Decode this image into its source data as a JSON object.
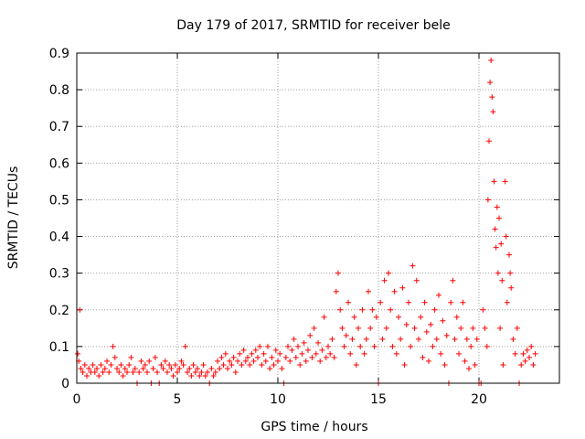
{
  "colors": {
    "series": "#ff0000",
    "grid": "#a0a0a0",
    "axis": "#000000",
    "background": "#ffffff"
  },
  "chart_data": {
    "type": "scatter",
    "title": "Day 179 of 2017, SRMTID for receiver bele",
    "xlabel": "GPS time / hours",
    "ylabel": "SRMTID / TECUs",
    "xlim": [
      0,
      24
    ],
    "ylim": [
      0,
      0.9
    ],
    "x_ticks": [
      0,
      5,
      10,
      15,
      20
    ],
    "x_tick_labels": [
      "0",
      "5",
      "10",
      "15",
      "20"
    ],
    "y_ticks": [
      0,
      0.1,
      0.2,
      0.3,
      0.4,
      0.5,
      0.6,
      0.7,
      0.8,
      0.9
    ],
    "y_tick_labels": [
      "0",
      "0.1",
      "0.2",
      "0.3",
      "0.4",
      "0.5",
      "0.6",
      "0.7",
      "0.8",
      "0.9"
    ],
    "grid": true,
    "marker": "plus",
    "series": [
      {
        "name": "SRMTID",
        "points": [
          [
            0.05,
            0.08
          ],
          [
            0.1,
            0.06
          ],
          [
            0.15,
            0.2
          ],
          [
            0.2,
            0.04
          ],
          [
            0.3,
            0.03
          ],
          [
            0.4,
            0.05
          ],
          [
            0.5,
            0.02
          ],
          [
            0.6,
            0.04
          ],
          [
            0.7,
            0.03
          ],
          [
            0.8,
            0.05
          ],
          [
            0.9,
            0.03
          ],
          [
            1.0,
            0.04
          ],
          [
            1.1,
            0.02
          ],
          [
            1.2,
            0.05
          ],
          [
            1.3,
            0.03
          ],
          [
            1.4,
            0.04
          ],
          [
            1.5,
            0.06
          ],
          [
            1.6,
            0.03
          ],
          [
            1.7,
            0.05
          ],
          [
            1.8,
            0.1
          ],
          [
            1.9,
            0.07
          ],
          [
            2.0,
            0.04
          ],
          [
            2.1,
            0.03
          ],
          [
            2.2,
            0.05
          ],
          [
            2.3,
            0.02
          ],
          [
            2.4,
            0.04
          ],
          [
            2.5,
            0.03
          ],
          [
            2.6,
            0.05
          ],
          [
            2.7,
            0.07
          ],
          [
            2.8,
            0.03
          ],
          [
            2.9,
            0.04
          ],
          [
            3.0,
            0.0
          ],
          [
            3.1,
            0.03
          ],
          [
            3.2,
            0.06
          ],
          [
            3.3,
            0.04
          ],
          [
            3.4,
            0.05
          ],
          [
            3.5,
            0.03
          ],
          [
            3.6,
            0.06
          ],
          [
            3.7,
            0.0
          ],
          [
            3.8,
            0.04
          ],
          [
            3.9,
            0.07
          ],
          [
            4.0,
            0.03
          ],
          [
            4.1,
            0.0
          ],
          [
            4.2,
            0.05
          ],
          [
            4.3,
            0.04
          ],
          [
            4.4,
            0.06
          ],
          [
            4.5,
            0.03
          ],
          [
            4.6,
            0.05
          ],
          [
            4.7,
            0.04
          ],
          [
            4.8,
            0.02
          ],
          [
            4.9,
            0.05
          ],
          [
            5.0,
            0.03
          ],
          [
            5.1,
            0.04
          ],
          [
            5.2,
            0.06
          ],
          [
            5.3,
            0.05
          ],
          [
            5.4,
            0.1
          ],
          [
            5.5,
            0.03
          ],
          [
            5.6,
            0.04
          ],
          [
            5.7,
            0.02
          ],
          [
            5.8,
            0.05
          ],
          [
            5.9,
            0.03
          ],
          [
            6.0,
            0.04
          ],
          [
            6.1,
            0.02
          ],
          [
            6.2,
            0.03
          ],
          [
            6.3,
            0.05
          ],
          [
            6.4,
            0.02
          ],
          [
            6.5,
            0.03
          ],
          [
            6.6,
            0.0
          ],
          [
            6.7,
            0.04
          ],
          [
            6.8,
            0.02
          ],
          [
            6.9,
            0.03
          ],
          [
            7.0,
            0.06
          ],
          [
            7.1,
            0.04
          ],
          [
            7.2,
            0.07
          ],
          [
            7.3,
            0.05
          ],
          [
            7.4,
            0.08
          ],
          [
            7.5,
            0.04
          ],
          [
            7.6,
            0.06
          ],
          [
            7.7,
            0.05
          ],
          [
            7.8,
            0.07
          ],
          [
            7.9,
            0.03
          ],
          [
            8.0,
            0.06
          ],
          [
            8.1,
            0.08
          ],
          [
            8.2,
            0.05
          ],
          [
            8.3,
            0.09
          ],
          [
            8.4,
            0.06
          ],
          [
            8.5,
            0.07
          ],
          [
            8.6,
            0.05
          ],
          [
            8.7,
            0.08
          ],
          [
            8.8,
            0.06
          ],
          [
            8.9,
            0.09
          ],
          [
            9.0,
            0.07
          ],
          [
            9.1,
            0.1
          ],
          [
            9.2,
            0.05
          ],
          [
            9.3,
            0.08
          ],
          [
            9.4,
            0.06
          ],
          [
            9.5,
            0.1
          ],
          [
            9.6,
            0.04
          ],
          [
            9.7,
            0.07
          ],
          [
            9.8,
            0.05
          ],
          [
            9.9,
            0.09
          ],
          [
            10.0,
            0.06
          ],
          [
            10.1,
            0.08
          ],
          [
            10.2,
            0.04
          ],
          [
            10.3,
            0.0
          ],
          [
            10.4,
            0.07
          ],
          [
            10.5,
            0.1
          ],
          [
            10.6,
            0.06
          ],
          [
            10.7,
            0.09
          ],
          [
            10.8,
            0.12
          ],
          [
            10.9,
            0.07
          ],
          [
            11.0,
            0.1
          ],
          [
            11.1,
            0.05
          ],
          [
            11.2,
            0.08
          ],
          [
            11.3,
            0.11
          ],
          [
            11.4,
            0.06
          ],
          [
            11.5,
            0.09
          ],
          [
            11.6,
            0.13
          ],
          [
            11.7,
            0.07
          ],
          [
            11.8,
            0.15
          ],
          [
            11.9,
            0.08
          ],
          [
            12.0,
            0.11
          ],
          [
            12.1,
            0.06
          ],
          [
            12.2,
            0.09
          ],
          [
            12.3,
            0.18
          ],
          [
            12.4,
            0.07
          ],
          [
            12.5,
            0.1
          ],
          [
            12.6,
            0.08
          ],
          [
            12.7,
            0.12
          ],
          [
            12.8,
            0.07
          ],
          [
            12.9,
            0.25
          ],
          [
            13.0,
            0.3
          ],
          [
            13.1,
            0.2
          ],
          [
            13.2,
            0.15
          ],
          [
            13.3,
            0.1
          ],
          [
            13.4,
            0.13
          ],
          [
            13.5,
            0.22
          ],
          [
            13.6,
            0.08
          ],
          [
            13.7,
            0.12
          ],
          [
            13.8,
            0.18
          ],
          [
            13.9,
            0.05
          ],
          [
            14.0,
            0.15
          ],
          [
            14.1,
            0.1
          ],
          [
            14.2,
            0.2
          ],
          [
            14.3,
            0.08
          ],
          [
            14.4,
            0.12
          ],
          [
            14.5,
            0.25
          ],
          [
            14.6,
            0.15
          ],
          [
            14.7,
            0.2
          ],
          [
            14.8,
            0.1
          ],
          [
            14.9,
            0.18
          ],
          [
            15.0,
            0.0
          ],
          [
            15.1,
            0.22
          ],
          [
            15.2,
            0.12
          ],
          [
            15.3,
            0.28
          ],
          [
            15.4,
            0.15
          ],
          [
            15.5,
            0.3
          ],
          [
            15.6,
            0.2
          ],
          [
            15.7,
            0.1
          ],
          [
            15.8,
            0.25
          ],
          [
            15.9,
            0.08
          ],
          [
            16.0,
            0.18
          ],
          [
            16.1,
            0.12
          ],
          [
            16.2,
            0.26
          ],
          [
            16.3,
            0.05
          ],
          [
            16.4,
            0.16
          ],
          [
            16.5,
            0.22
          ],
          [
            16.6,
            0.1
          ],
          [
            16.7,
            0.32
          ],
          [
            16.8,
            0.15
          ],
          [
            16.9,
            0.28
          ],
          [
            17.0,
            0.12
          ],
          [
            17.1,
            0.18
          ],
          [
            17.2,
            0.07
          ],
          [
            17.3,
            0.22
          ],
          [
            17.4,
            0.14
          ],
          [
            17.5,
            0.06
          ],
          [
            17.6,
            0.16
          ],
          [
            17.7,
            0.1
          ],
          [
            17.8,
            0.2
          ],
          [
            17.9,
            0.12
          ],
          [
            18.0,
            0.24
          ],
          [
            18.1,
            0.08
          ],
          [
            18.2,
            0.17
          ],
          [
            18.3,
            0.05
          ],
          [
            18.4,
            0.13
          ],
          [
            18.5,
            0.0
          ],
          [
            18.6,
            0.22
          ],
          [
            18.7,
            0.28
          ],
          [
            18.8,
            0.12
          ],
          [
            18.9,
            0.18
          ],
          [
            19.0,
            0.08
          ],
          [
            19.1,
            0.15
          ],
          [
            19.2,
            0.22
          ],
          [
            19.3,
            0.06
          ],
          [
            19.4,
            0.12
          ],
          [
            19.5,
            0.04
          ],
          [
            19.6,
            0.1
          ],
          [
            19.7,
            0.15
          ],
          [
            19.8,
            0.05
          ],
          [
            19.9,
            0.12
          ],
          [
            20.0,
            0.0
          ],
          [
            20.1,
            0.0
          ],
          [
            20.2,
            0.2
          ],
          [
            20.3,
            0.15
          ],
          [
            20.4,
            0.1
          ],
          [
            20.45,
            0.5
          ],
          [
            20.5,
            0.66
          ],
          [
            20.55,
            0.82
          ],
          [
            20.6,
            0.88
          ],
          [
            20.65,
            0.78
          ],
          [
            20.7,
            0.74
          ],
          [
            20.75,
            0.55
          ],
          [
            20.8,
            0.42
          ],
          [
            20.85,
            0.37
          ],
          [
            20.9,
            0.48
          ],
          [
            20.95,
            0.3
          ],
          [
            21.0,
            0.45
          ],
          [
            21.05,
            0.15
          ],
          [
            21.1,
            0.38
          ],
          [
            21.15,
            0.28
          ],
          [
            21.2,
            0.05
          ],
          [
            21.3,
            0.55
          ],
          [
            21.35,
            0.4
          ],
          [
            21.4,
            0.22
          ],
          [
            21.5,
            0.35
          ],
          [
            21.55,
            0.3
          ],
          [
            21.6,
            0.26
          ],
          [
            21.7,
            0.12
          ],
          [
            21.8,
            0.08
          ],
          [
            21.9,
            0.15
          ],
          [
            22.0,
            0.0
          ],
          [
            22.1,
            0.05
          ],
          [
            22.2,
            0.08
          ],
          [
            22.3,
            0.06
          ],
          [
            22.4,
            0.09
          ],
          [
            22.5,
            0.07
          ],
          [
            22.6,
            0.1
          ],
          [
            22.7,
            0.05
          ],
          [
            22.8,
            0.08
          ]
        ]
      }
    ]
  }
}
